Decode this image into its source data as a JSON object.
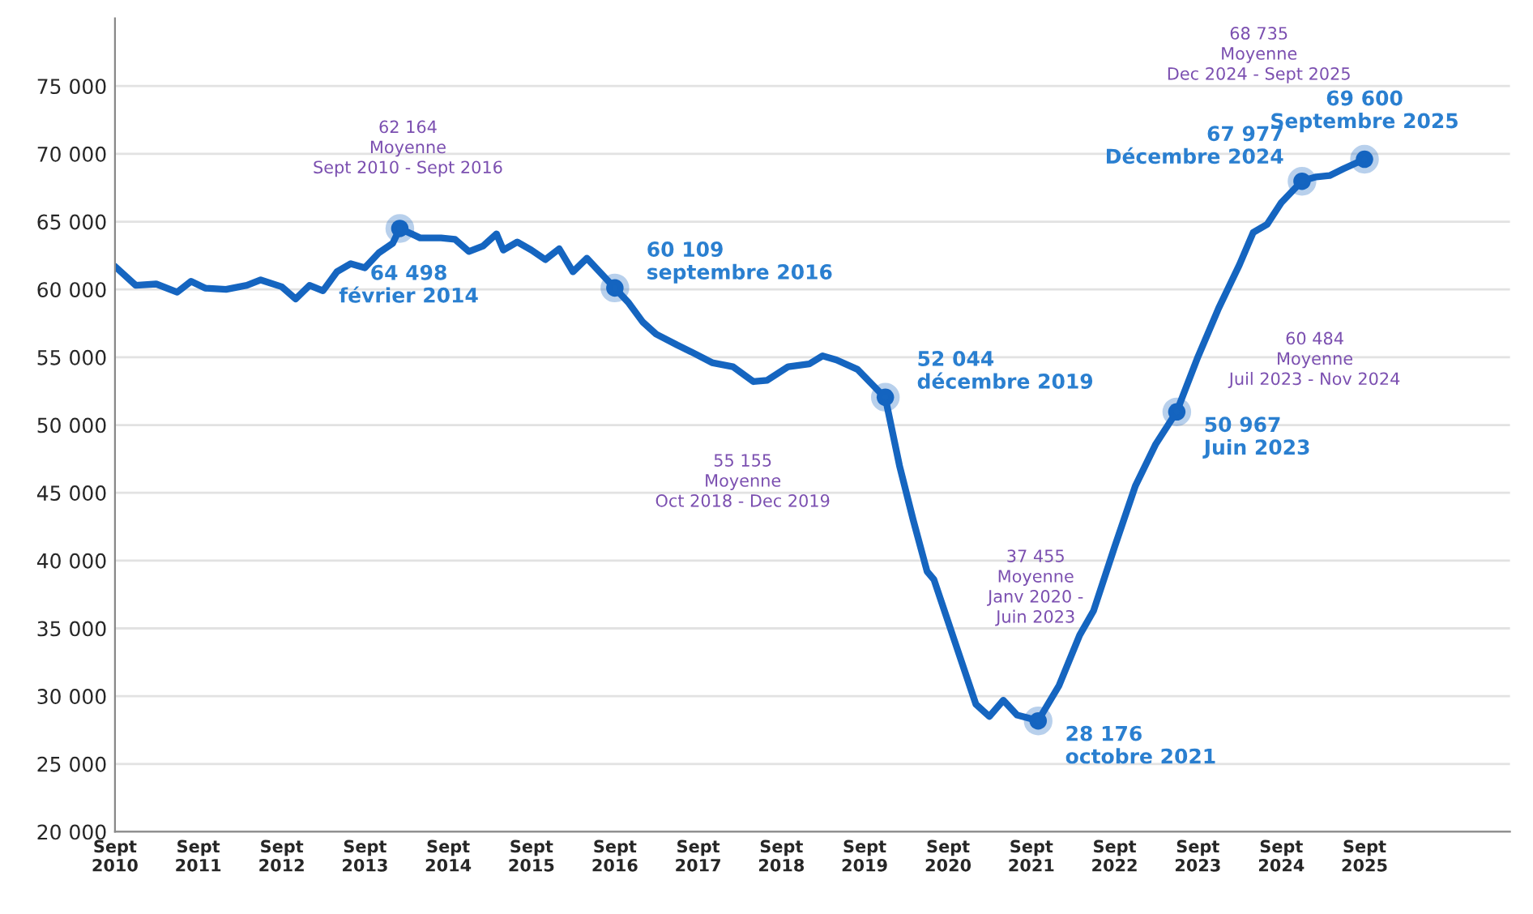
{
  "chart_data": {
    "type": "line",
    "xlim": [
      "2010-09",
      "2027-06"
    ],
    "ylim": [
      20000,
      80000
    ],
    "yticks": [
      {
        "value": 20000,
        "label": "20 000"
      },
      {
        "value": 25000,
        "label": "25 000"
      },
      {
        "value": 30000,
        "label": "30 000"
      },
      {
        "value": 35000,
        "label": "35 000"
      },
      {
        "value": 40000,
        "label": "40 000"
      },
      {
        "value": 45000,
        "label": "45 000"
      },
      {
        "value": 50000,
        "label": "50 000"
      },
      {
        "value": 55000,
        "label": "55 000"
      },
      {
        "value": 60000,
        "label": "60 000"
      },
      {
        "value": 65000,
        "label": "65 000"
      },
      {
        "value": 70000,
        "label": "70 000"
      },
      {
        "value": 75000,
        "label": "75 000"
      }
    ],
    "xticks": [
      {
        "value": "2010-09",
        "label": "Sept\n2010"
      },
      {
        "value": "2011-09",
        "label": "Sept\n2011"
      },
      {
        "value": "2012-09",
        "label": "Sept\n2012"
      },
      {
        "value": "2013-09",
        "label": "Sept\n2013"
      },
      {
        "value": "2014-09",
        "label": "Sept\n2014"
      },
      {
        "value": "2015-09",
        "label": "Sept\n2015"
      },
      {
        "value": "2016-09",
        "label": "Sept\n2016"
      },
      {
        "value": "2017-09",
        "label": "Sept\n2017"
      },
      {
        "value": "2018-09",
        "label": "Sept\n2018"
      },
      {
        "value": "2019-09",
        "label": "Sept\n2019"
      },
      {
        "value": "2020-09",
        "label": "Sept\n2020"
      },
      {
        "value": "2021-09",
        "label": "Sept\n2021"
      },
      {
        "value": "2022-09",
        "label": "Sept\n2022"
      },
      {
        "value": "2023-09",
        "label": "Sept\n2023"
      },
      {
        "value": "2024-09",
        "label": "Sept\n2024"
      },
      {
        "value": "2025-09",
        "label": "Sept\n2025"
      }
    ],
    "grid": "y",
    "series": [
      {
        "color": "#1565c0",
        "x": [
          "2010-09",
          "2010-12",
          "2011-03",
          "2011-06",
          "2011-08",
          "2011-10",
          "2012-01",
          "2012-04",
          "2012-06",
          "2012-09",
          "2012-11",
          "2013-01",
          "2013-03",
          "2013-05",
          "2013-07",
          "2013-09",
          "2013-11",
          "2014-01",
          "2014-02",
          "2014-05",
          "2014-08",
          "2014-10",
          "2014-12",
          "2015-02",
          "2015-04",
          "2015-05",
          "2015-07",
          "2015-09",
          "2015-11",
          "2016-01",
          "2016-03",
          "2016-05",
          "2016-09",
          "2016-11",
          "2017-01",
          "2017-03",
          "2017-06",
          "2017-08",
          "2017-11",
          "2018-02",
          "2018-05",
          "2018-07",
          "2018-10",
          "2019-01",
          "2019-03",
          "2019-05",
          "2019-08",
          "2019-12",
          "2020-02",
          "2020-04",
          "2020-06",
          "2020-07",
          "2020-10",
          "2021-01",
          "2021-03",
          "2021-05",
          "2021-07",
          "2021-10",
          "2022-01",
          "2022-04",
          "2022-06",
          "2022-09",
          "2022-12",
          "2023-03",
          "2023-06",
          "2023-09",
          "2023-12",
          "2024-03",
          "2024-05",
          "2024-07",
          "2024-09",
          "2024-12",
          "2025-02",
          "2025-04",
          "2025-06",
          "2025-09"
        ],
        "values": [
          61700,
          60300,
          60400,
          59800,
          60600,
          60100,
          60000,
          60300,
          60700,
          60200,
          59300,
          60300,
          59900,
          61300,
          61900,
          61600,
          62700,
          63400,
          64500,
          63800,
          63800,
          63700,
          62800,
          63200,
          64100,
          62900,
          63500,
          62900,
          62200,
          63000,
          61300,
          62300,
          60100,
          59000,
          57600,
          56700,
          55900,
          55400,
          54600,
          54300,
          53200,
          53300,
          54300,
          54500,
          55100,
          54800,
          54100,
          52000,
          47000,
          43000,
          39200,
          38600,
          34000,
          29400,
          28500,
          29700,
          28600,
          28200,
          30800,
          34500,
          36300,
          41000,
          45500,
          48600,
          51000,
          55000,
          58600,
          61800,
          64200,
          64800,
          66400,
          68000,
          68300,
          68400,
          68900,
          69600
        ]
      },
      {
        "type": "scatter",
        "color": "#1565c0",
        "x": [
          "2014-02",
          "2016-09",
          "2019-12",
          "2021-10",
          "2023-06",
          "2024-12",
          "2025-09"
        ],
        "values": [
          64498,
          60109,
          52044,
          28176,
          50967,
          67977,
          69600
        ],
        "value_labels": [
          "64 498\nfévrier 2014",
          "60 109\nseptembre 2016",
          "52 044\ndécembre 2019",
          "28 176\noctobre 2021",
          "50 967\nJuin 2023",
          "67 977\nDécembre 2024",
          "69 600\nSeptembre 2025"
        ]
      }
    ],
    "annotations": [
      "62 164\nMoyenne\nSept 2010 - Sept 2016",
      "55 155\nMoyenne\nOct 2018 - Dec 2019",
      "37 455\nMoyenne\nJanv 2020 -\nJuin 2023",
      "60 484\nMoyenne\nJuil 2023 - Nov 2024",
      "68 735\nMoyenne\nDec 2024 - Sept 2025"
    ]
  }
}
